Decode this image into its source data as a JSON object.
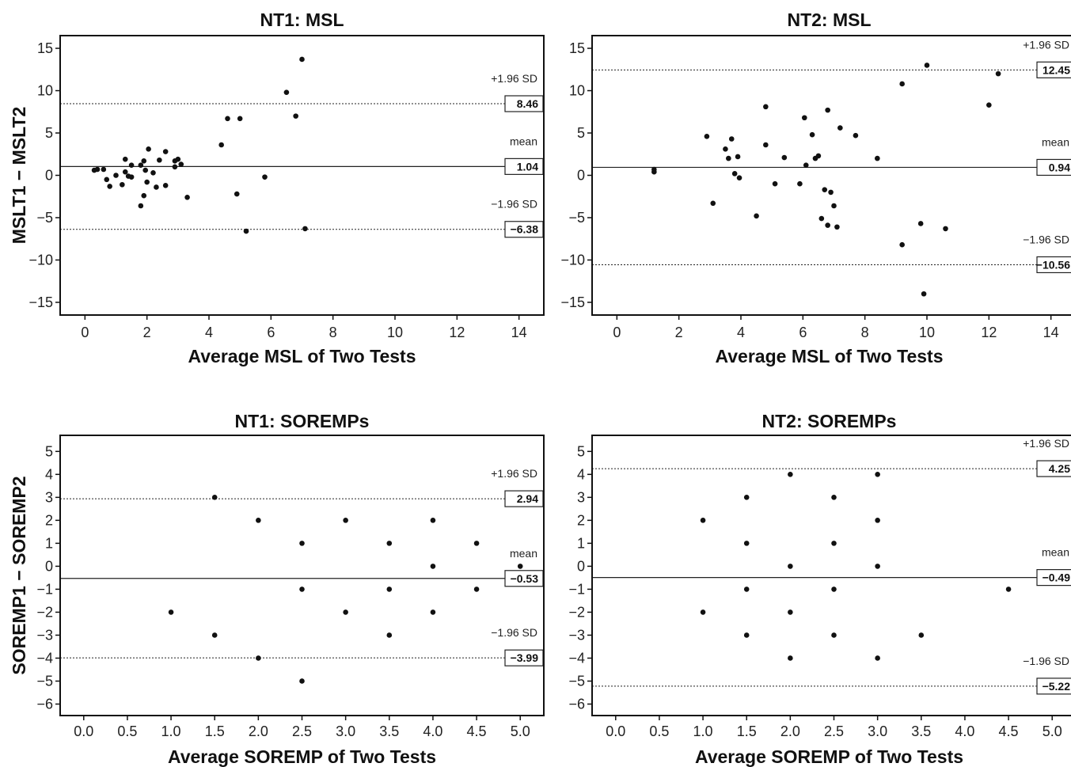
{
  "chart_data": [
    {
      "type": "scatter",
      "title": "NT1: MSL",
      "xlabel": "Average MSL of Two Tests",
      "ylabel": "MSLT1 − MSLT2",
      "xlim": [
        -0.8,
        14.8
      ],
      "ylim": [
        -16.5,
        16.5
      ],
      "xticks": [
        0,
        2,
        4,
        6,
        8,
        10,
        12,
        14
      ],
      "xtick_labels": [
        "0",
        "2",
        "4",
        "6",
        "8",
        "10",
        "12",
        "14"
      ],
      "yticks": [
        15,
        10,
        5,
        0,
        -5,
        -10,
        -15
      ],
      "ytick_labels": [
        "15",
        "10",
        "5",
        "0",
        "−5",
        "−10",
        "−15"
      ],
      "lines": [
        {
          "label": "+1.96 SD",
          "value": 8.46,
          "value_label": "8.46",
          "style": "dotted"
        },
        {
          "label": "mean",
          "value": 1.04,
          "value_label": "1.04",
          "style": "solid"
        },
        {
          "label": "−1.96 SD",
          "value": -6.38,
          "value_label": "−6.38",
          "style": "dotted"
        }
      ],
      "points": [
        [
          0.3,
          0.6
        ],
        [
          0.4,
          0.7
        ],
        [
          0.6,
          0.7
        ],
        [
          0.7,
          -0.5
        ],
        [
          0.8,
          -1.3
        ],
        [
          1.0,
          0.0
        ],
        [
          1.2,
          -1.1
        ],
        [
          1.3,
          0.4
        ],
        [
          1.3,
          1.9
        ],
        [
          1.4,
          -0.1
        ],
        [
          1.5,
          -0.2
        ],
        [
          1.5,
          1.2
        ],
        [
          1.8,
          -3.6
        ],
        [
          1.8,
          1.2
        ],
        [
          1.9,
          1.7
        ],
        [
          1.9,
          -2.4
        ],
        [
          1.95,
          0.6
        ],
        [
          2.0,
          -0.8
        ],
        [
          2.05,
          3.1
        ],
        [
          2.2,
          0.3
        ],
        [
          2.3,
          -1.4
        ],
        [
          2.4,
          1.8
        ],
        [
          2.6,
          -1.2
        ],
        [
          2.6,
          2.8
        ],
        [
          2.9,
          1.0
        ],
        [
          2.9,
          1.7
        ],
        [
          3.0,
          1.9
        ],
        [
          3.1,
          1.3
        ],
        [
          3.3,
          -2.6
        ],
        [
          4.4,
          3.6
        ],
        [
          4.6,
          6.7
        ],
        [
          4.9,
          -2.2
        ],
        [
          5.0,
          6.7
        ],
        [
          5.2,
          -6.6
        ],
        [
          5.8,
          -0.2
        ],
        [
          6.5,
          9.8
        ],
        [
          6.8,
          7.0
        ],
        [
          7.0,
          13.7
        ],
        [
          7.1,
          -6.3
        ]
      ]
    },
    {
      "type": "scatter",
      "title": "NT2: MSL",
      "xlabel": "Average MSL of Two Tests",
      "ylabel": "",
      "xlim": [
        -0.8,
        14.8
      ],
      "ylim": [
        -16.5,
        16.5
      ],
      "xticks": [
        0,
        2,
        4,
        6,
        8,
        10,
        12,
        14
      ],
      "xtick_labels": [
        "0",
        "2",
        "4",
        "6",
        "8",
        "10",
        "12",
        "14"
      ],
      "yticks": [
        15,
        10,
        5,
        0,
        -5,
        -10,
        -15
      ],
      "ytick_labels": [
        "15",
        "10",
        "5",
        "0",
        "−5",
        "−10",
        "−15"
      ],
      "lines": [
        {
          "label": "+1.96 SD",
          "value": 12.45,
          "value_label": "12.45",
          "style": "dotted"
        },
        {
          "label": "mean",
          "value": 0.94,
          "value_label": "0.94",
          "style": "solid"
        },
        {
          "label": "−1.96 SD",
          "value": -10.56,
          "value_label": "−10.56",
          "style": "dotted"
        }
      ],
      "points": [
        [
          1.2,
          0.4
        ],
        [
          1.2,
          0.7
        ],
        [
          2.9,
          4.6
        ],
        [
          3.1,
          -3.3
        ],
        [
          3.5,
          3.1
        ],
        [
          3.6,
          2.0
        ],
        [
          3.7,
          4.3
        ],
        [
          3.8,
          0.2
        ],
        [
          3.9,
          2.2
        ],
        [
          3.95,
          -0.3
        ],
        [
          4.5,
          -4.8
        ],
        [
          4.8,
          3.6
        ],
        [
          4.8,
          8.1
        ],
        [
          5.1,
          -1.0
        ],
        [
          5.4,
          2.1
        ],
        [
          5.9,
          -1.0
        ],
        [
          6.05,
          6.8
        ],
        [
          6.1,
          1.2
        ],
        [
          6.3,
          4.8
        ],
        [
          6.4,
          2.0
        ],
        [
          6.5,
          2.3
        ],
        [
          6.6,
          -5.1
        ],
        [
          6.7,
          -1.7
        ],
        [
          6.8,
          7.7
        ],
        [
          6.8,
          -5.9
        ],
        [
          6.9,
          -2.0
        ],
        [
          7.0,
          -3.6
        ],
        [
          7.1,
          -6.1
        ],
        [
          7.2,
          5.6
        ],
        [
          7.7,
          4.7
        ],
        [
          8.4,
          2.0
        ],
        [
          9.2,
          -8.2
        ],
        [
          9.2,
          10.8
        ],
        [
          9.8,
          -5.7
        ],
        [
          9.9,
          -14.0
        ],
        [
          10.0,
          13.0
        ],
        [
          10.6,
          -6.3
        ],
        [
          12.0,
          8.3
        ],
        [
          12.3,
          12.0
        ]
      ]
    },
    {
      "type": "scatter",
      "title": "NT1: SOREMPs",
      "xlabel": "Average SOREMP of Two Tests",
      "ylabel": "SOREMP1 − SOREMP2",
      "xlim": [
        -0.27,
        5.27
      ],
      "ylim": [
        -6.5,
        5.7
      ],
      "xticks": [
        0,
        0.5,
        1,
        1.5,
        2,
        2.5,
        3,
        3.5,
        4,
        4.5,
        5
      ],
      "xtick_labels": [
        "0.0",
        "0.5",
        "1.0",
        "1.5",
        "2.0",
        "2.5",
        "3.0",
        "3.5",
        "4.0",
        "4.5",
        "5.0"
      ],
      "yticks": [
        5,
        4,
        3,
        2,
        1,
        0,
        -1,
        -2,
        -3,
        -4,
        -5,
        -6
      ],
      "ytick_labels": [
        "5",
        "4",
        "3",
        "2",
        "1",
        "0",
        "−1",
        "−2",
        "−3",
        "−4",
        "−5",
        "−6"
      ],
      "lines": [
        {
          "label": "+1.96 SD",
          "value": 2.94,
          "value_label": "2.94",
          "style": "dotted"
        },
        {
          "label": "mean",
          "value": -0.53,
          "value_label": "−0.53",
          "style": "solid"
        },
        {
          "label": "−1.96 SD",
          "value": -3.99,
          "value_label": "−3.99",
          "style": "dotted"
        }
      ],
      "points": [
        [
          1.0,
          -2
        ],
        [
          1.5,
          3
        ],
        [
          1.5,
          -3
        ],
        [
          2.0,
          2
        ],
        [
          2.0,
          -4
        ],
        [
          2.5,
          1
        ],
        [
          2.5,
          -1
        ],
        [
          2.5,
          -5
        ],
        [
          3.0,
          2
        ],
        [
          3.0,
          -2
        ],
        [
          3.5,
          1
        ],
        [
          3.5,
          -1
        ],
        [
          3.5,
          -3
        ],
        [
          4.0,
          2
        ],
        [
          4.0,
          0
        ],
        [
          4.0,
          -2
        ],
        [
          4.5,
          1
        ],
        [
          4.5,
          -1
        ],
        [
          5.0,
          0
        ]
      ]
    },
    {
      "type": "scatter",
      "title": "NT2: SOREMPs",
      "xlabel": "Average SOREMP of Two Tests",
      "ylabel": "",
      "xlim": [
        -0.27,
        5.27
      ],
      "ylim": [
        -6.5,
        5.7
      ],
      "xticks": [
        0,
        0.5,
        1,
        1.5,
        2,
        2.5,
        3,
        3.5,
        4,
        4.5,
        5
      ],
      "xtick_labels": [
        "0.0",
        "0.5",
        "1.0",
        "1.5",
        "2.0",
        "2.5",
        "3.0",
        "3.5",
        "4.0",
        "4.5",
        "5.0"
      ],
      "yticks": [
        5,
        4,
        3,
        2,
        1,
        0,
        -1,
        -2,
        -3,
        -4,
        -5,
        -6
      ],
      "ytick_labels": [
        "5",
        "4",
        "3",
        "2",
        "1",
        "0",
        "−1",
        "−2",
        "−3",
        "−4",
        "−5",
        "−6"
      ],
      "lines": [
        {
          "label": "+1.96 SD",
          "value": 4.25,
          "value_label": "4.25",
          "style": "dotted"
        },
        {
          "label": "mean",
          "value": -0.49,
          "value_label": "−0.49",
          "style": "solid"
        },
        {
          "label": "−1.96 SD",
          "value": -5.22,
          "value_label": "−5.22",
          "style": "dotted"
        }
      ],
      "points": [
        [
          1.0,
          2
        ],
        [
          1.0,
          -2
        ],
        [
          1.5,
          3
        ],
        [
          1.5,
          1
        ],
        [
          1.5,
          -1
        ],
        [
          1.5,
          -3
        ],
        [
          2.0,
          4
        ],
        [
          2.0,
          0
        ],
        [
          2.0,
          -2
        ],
        [
          2.0,
          -4
        ],
        [
          2.5,
          3
        ],
        [
          2.5,
          1
        ],
        [
          2.5,
          -1
        ],
        [
          2.5,
          -3
        ],
        [
          3.0,
          4
        ],
        [
          3.0,
          2
        ],
        [
          3.0,
          0
        ],
        [
          3.0,
          -4
        ],
        [
          3.5,
          -3
        ],
        [
          4.5,
          -1
        ]
      ]
    }
  ]
}
